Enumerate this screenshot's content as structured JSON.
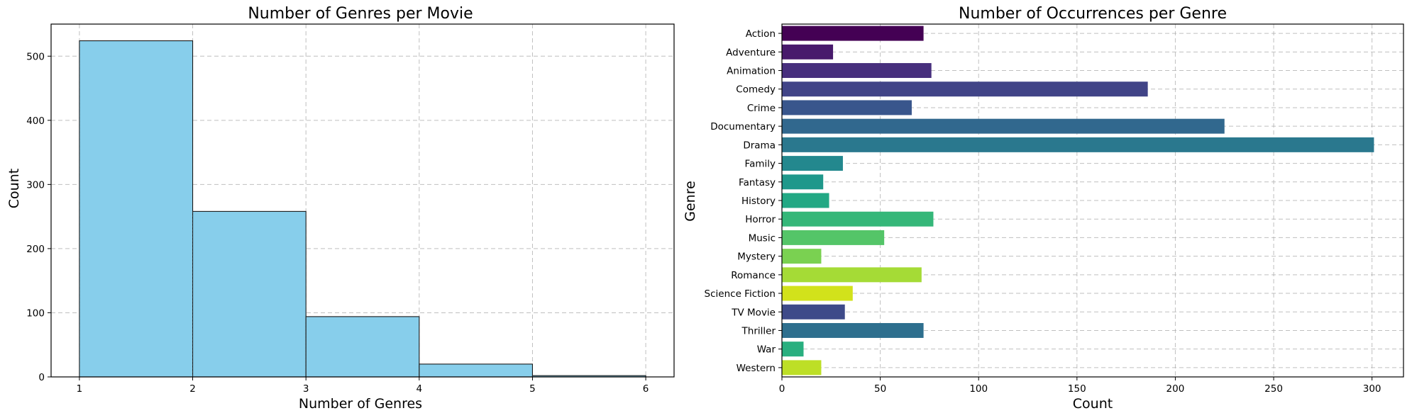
{
  "chart_data": [
    {
      "type": "bar",
      "title": "Number of Genres per Movie",
      "xlabel": "Number of Genres",
      "ylabel": "Count",
      "bins": [
        [
          1,
          2
        ],
        [
          2,
          3
        ],
        [
          3,
          4
        ],
        [
          4,
          5
        ],
        [
          5,
          6
        ]
      ],
      "values": [
        524,
        258,
        94,
        20,
        2
      ],
      "xticks": [
        "1",
        "2",
        "3",
        "4",
        "5",
        "6"
      ],
      "yticks": [
        "0",
        "100",
        "200",
        "300",
        "400",
        "500"
      ],
      "xlim": [
        0.75,
        6.25
      ],
      "ylim": [
        0,
        550
      ],
      "grid": true,
      "color": "#87CEEB"
    },
    {
      "type": "bar",
      "orientation": "horizontal",
      "title": "Number of Occurrences per Genre",
      "xlabel": "Count",
      "ylabel": "Genre",
      "categories": [
        "Action",
        "Adventure",
        "Animation",
        "Comedy",
        "Crime",
        "Documentary",
        "Drama",
        "Family",
        "Fantasy",
        "History",
        "Horror",
        "Music",
        "Mystery",
        "Romance",
        "Science Fiction",
        "TV Movie",
        "Thriller",
        "War",
        "Western"
      ],
      "values": [
        72,
        26,
        76,
        186,
        66,
        225,
        301,
        31,
        21,
        24,
        77,
        52,
        20,
        71,
        36,
        32,
        72,
        11,
        20
      ],
      "xticks": [
        "0",
        "50",
        "100",
        "150",
        "200",
        "250",
        "300"
      ],
      "xlim": [
        0,
        316
      ],
      "grid": true,
      "palette": "viridis",
      "colors": [
        "#440154",
        "#481a6c",
        "#472f7d",
        "#414487",
        "#39568c",
        "#31688e",
        "#2a788e",
        "#23888e",
        "#1f988b",
        "#22a884",
        "#35b779",
        "#54c568",
        "#7ad151",
        "#a5db36",
        "#d2e21b",
        "#3e4a89",
        "#2e6f8e",
        "#29af7f",
        "#bddf26"
      ]
    }
  ]
}
